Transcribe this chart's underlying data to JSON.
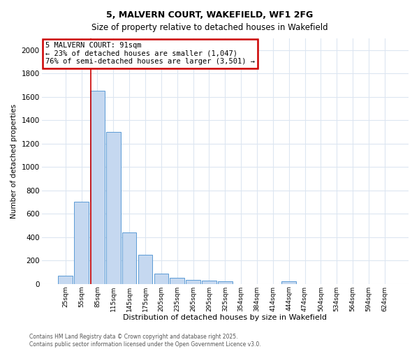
{
  "title1": "5, MALVERN COURT, WAKEFIELD, WF1 2FG",
  "title2": "Size of property relative to detached houses in Wakefield",
  "xlabel": "Distribution of detached houses by size in Wakefield",
  "ylabel": "Number of detached properties",
  "categories": [
    "25sqm",
    "55sqm",
    "85sqm",
    "115sqm",
    "145sqm",
    "175sqm",
    "205sqm",
    "235sqm",
    "265sqm",
    "295sqm",
    "325sqm",
    "354sqm",
    "384sqm",
    "414sqm",
    "444sqm",
    "474sqm",
    "504sqm",
    "534sqm",
    "564sqm",
    "594sqm",
    "624sqm"
  ],
  "values": [
    70,
    700,
    1650,
    1300,
    440,
    250,
    90,
    50,
    35,
    30,
    20,
    0,
    0,
    0,
    20,
    0,
    0,
    0,
    0,
    0,
    0
  ],
  "bar_color": "#c5d8f0",
  "bar_edge_color": "#5b9bd5",
  "red_line_x": 1.575,
  "annotation_text": "5 MALVERN COURT: 91sqm\n← 23% of detached houses are smaller (1,047)\n76% of semi-detached houses are larger (3,501) →",
  "annotation_box_color": "#ffffff",
  "annotation_box_edge": "#cc0000",
  "ylim": [
    0,
    2100
  ],
  "yticks": [
    0,
    200,
    400,
    600,
    800,
    1000,
    1200,
    1400,
    1600,
    1800,
    2000
  ],
  "footer1": "Contains HM Land Registry data © Crown copyright and database right 2025.",
  "footer2": "Contains public sector information licensed under the Open Government Licence v3.0.",
  "bg_color": "#ffffff",
  "grid_color": "#dce6f1"
}
